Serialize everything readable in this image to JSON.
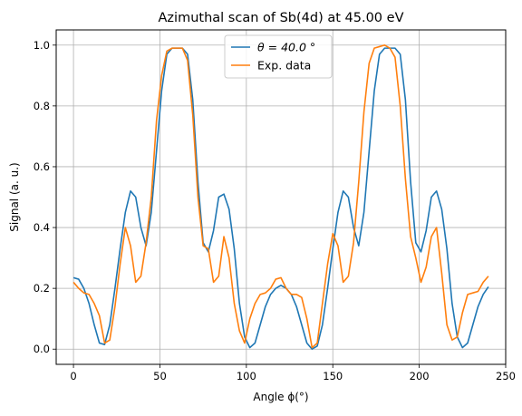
{
  "chart_data": {
    "type": "line",
    "title": "Azimuthal scan of Sb(4d) at 45.00 eV",
    "xlabel": "Angle ϕ(°)",
    "ylabel": "Signal (a. u.)",
    "xlim": [
      -10,
      250
    ],
    "ylim": [
      -0.05,
      1.05
    ],
    "xticks": [
      0,
      50,
      100,
      150,
      200,
      250
    ],
    "yticks": [
      0.0,
      0.2,
      0.4,
      0.6,
      0.8,
      1.0
    ],
    "xtick_labels": [
      "0",
      "50",
      "100",
      "150",
      "200",
      "250"
    ],
    "ytick_labels": [
      "0.0",
      "0.2",
      "0.4",
      "0.6",
      "0.8",
      "1.0"
    ],
    "grid": true,
    "legend_position": "top-center",
    "series": [
      {
        "name": "θ = 40.0 °",
        "color": "#1f77b4",
        "x": [
          0,
          3,
          6,
          9,
          12,
          15,
          18,
          21,
          24,
          27,
          30,
          33,
          36,
          39,
          42,
          45,
          48,
          51,
          54,
          57,
          60,
          63,
          66,
          69,
          72,
          75,
          78,
          81,
          84,
          87,
          90,
          93,
          96,
          99,
          102,
          105,
          108,
          111,
          114,
          117,
          120,
          123,
          126,
          129,
          132,
          135,
          138,
          141,
          144,
          147,
          150,
          153,
          156,
          159,
          162,
          165,
          168,
          171,
          174,
          177,
          180,
          183,
          186,
          189,
          192,
          195,
          198,
          201,
          204,
          207,
          210,
          213,
          216,
          219,
          222,
          225,
          228,
          231,
          234,
          237,
          240
        ],
        "y": [
          0.235,
          0.23,
          0.2,
          0.15,
          0.08,
          0.02,
          0.015,
          0.08,
          0.2,
          0.33,
          0.45,
          0.52,
          0.5,
          0.4,
          0.34,
          0.45,
          0.65,
          0.85,
          0.97,
          0.99,
          0.99,
          0.99,
          0.97,
          0.82,
          0.55,
          0.35,
          0.32,
          0.39,
          0.5,
          0.51,
          0.46,
          0.33,
          0.15,
          0.04,
          0.005,
          0.02,
          0.08,
          0.14,
          0.18,
          0.2,
          0.21,
          0.2,
          0.18,
          0.14,
          0.08,
          0.02,
          0.0,
          0.01,
          0.08,
          0.2,
          0.33,
          0.45,
          0.52,
          0.5,
          0.4,
          0.34,
          0.45,
          0.65,
          0.85,
          0.97,
          0.99,
          0.99,
          0.99,
          0.97,
          0.82,
          0.55,
          0.35,
          0.32,
          0.39,
          0.5,
          0.52,
          0.46,
          0.33,
          0.15,
          0.04,
          0.005,
          0.02,
          0.08,
          0.14,
          0.18,
          0.205
        ]
      },
      {
        "name": "Exp. data",
        "color": "#ff7f0e",
        "x": [
          0,
          3,
          6,
          9,
          12,
          15,
          18,
          21,
          24,
          27,
          30,
          33,
          36,
          39,
          42,
          45,
          48,
          51,
          54,
          57,
          60,
          63,
          66,
          69,
          72,
          75,
          78,
          81,
          84,
          87,
          90,
          93,
          96,
          99,
          102,
          105,
          108,
          111,
          114,
          117,
          120,
          123,
          126,
          129,
          132,
          135,
          138,
          141,
          144,
          147,
          150,
          153,
          156,
          159,
          162,
          165,
          168,
          171,
          174,
          177,
          180,
          183,
          186,
          189,
          192,
          195,
          198,
          201,
          204,
          207,
          210,
          213,
          216,
          219,
          222,
          225,
          228,
          231,
          234,
          237,
          240
        ],
        "y": [
          0.22,
          0.2,
          0.185,
          0.18,
          0.15,
          0.11,
          0.02,
          0.03,
          0.14,
          0.28,
          0.4,
          0.34,
          0.22,
          0.24,
          0.35,
          0.5,
          0.75,
          0.9,
          0.98,
          0.99,
          0.99,
          0.99,
          0.95,
          0.77,
          0.5,
          0.34,
          0.33,
          0.22,
          0.24,
          0.37,
          0.3,
          0.15,
          0.06,
          0.02,
          0.1,
          0.15,
          0.18,
          0.185,
          0.2,
          0.23,
          0.235,
          0.2,
          0.18,
          0.18,
          0.17,
          0.1,
          0.005,
          0.02,
          0.15,
          0.28,
          0.38,
          0.34,
          0.22,
          0.24,
          0.35,
          0.55,
          0.78,
          0.94,
          0.99,
          0.995,
          1.0,
          0.99,
          0.96,
          0.8,
          0.56,
          0.37,
          0.3,
          0.22,
          0.27,
          0.37,
          0.4,
          0.25,
          0.08,
          0.03,
          0.04,
          0.12,
          0.18,
          0.185,
          0.19,
          0.22,
          0.24
        ]
      }
    ]
  }
}
